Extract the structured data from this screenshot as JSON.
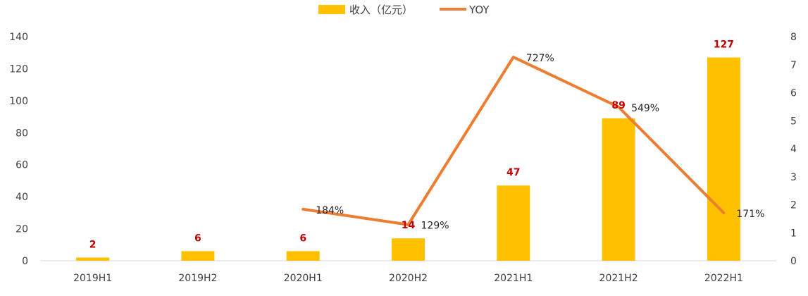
{
  "chart_data": {
    "type": "bar",
    "categories": [
      "2019H1",
      "2019H2",
      "2020H1",
      "2020H2",
      "2021H1",
      "2021H2",
      "2022H1"
    ],
    "series": [
      {
        "name": "收入（亿元）",
        "type": "bar",
        "axis": "left",
        "color": "#ffc000",
        "values": [
          2,
          6,
          6,
          14,
          47,
          89,
          127
        ],
        "labels": [
          "2",
          "6",
          "6",
          "14",
          "47",
          "89",
          "127"
        ]
      },
      {
        "name": "YOY",
        "type": "line",
        "axis": "right",
        "color": "#ed7d31",
        "values": [
          null,
          null,
          1.84,
          1.29,
          7.27,
          5.49,
          1.71
        ],
        "labels": [
          "",
          "",
          "184%",
          "129%",
          "727%",
          "549%",
          "171%"
        ]
      }
    ],
    "ylim_left": [
      0,
      140
    ],
    "yticks_left": [
      "0",
      "20",
      "40",
      "60",
      "80",
      "100",
      "120",
      "140"
    ],
    "ylim_right": [
      0,
      8
    ],
    "yticks_right": [
      "0",
      "1",
      "2",
      "3",
      "4",
      "5",
      "6",
      "7",
      "8"
    ],
    "legend_position": "top",
    "grid": false,
    "bar_label_color": "#c00000"
  }
}
